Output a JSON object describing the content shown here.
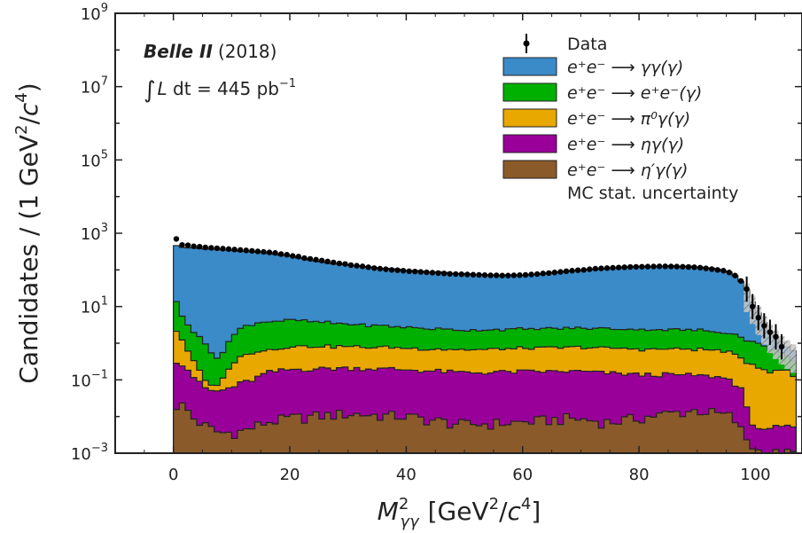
{
  "chart_data": {
    "type": "area",
    "stacked": true,
    "ylog": true,
    "xlabel": {
      "m": "M",
      "sup": "2",
      "sub": "γγ",
      "unit": "[GeV",
      "unit_sup": "2",
      "unit_mid": "/",
      "unit_c": "c",
      "unit_c_sup": "4",
      "unit_end": "]"
    },
    "ylabel": {
      "pre": "Candidates / (1 GeV",
      "sup1": "2",
      "mid": "/",
      "c": "c",
      "sup2": "4",
      "end": ")"
    },
    "xlim": [
      -10,
      108
    ],
    "ylim": [
      0.001,
      1000000000
    ],
    "x_ticks": [
      "0",
      "20",
      "40",
      "60",
      "80",
      "100"
    ],
    "x_tick_values": [
      0,
      20,
      40,
      60,
      80,
      100
    ],
    "y_ticks": [
      {
        "base": "10",
        "exp": "−3",
        "value": 0.001
      },
      {
        "base": "10",
        "exp": "−1",
        "value": 0.1
      },
      {
        "base": "10",
        "exp": "1",
        "value": 10
      },
      {
        "base": "10",
        "exp": "3",
        "value": 1000
      },
      {
        "base": "10",
        "exp": "5",
        "value": 100000
      },
      {
        "base": "10",
        "exp": "7",
        "value": 10000000
      },
      {
        "base": "10",
        "exp": "9",
        "value": 1000000000
      }
    ],
    "annotation": {
      "experiment": "Belle II",
      "year": "(2018)",
      "lumi_int": "∫",
      "lumi_L": "L",
      "lumi_dt": " dt = 445 pb",
      "lumi_exp": "−1"
    },
    "legend": {
      "position": "top-right"
    },
    "mc_stat_label": "MC stat. uncertainty",
    "data_label": "Data",
    "series": [
      {
        "name": "e⁺e⁻ ⟶ η′γ(γ)",
        "color": "#8b5a2b",
        "knots": [
          [
            0,
            0.02
          ],
          [
            2,
            0.02
          ],
          [
            3,
            0.01
          ],
          [
            5,
            0.006
          ],
          [
            8,
            0.0035
          ],
          [
            12,
            0.004
          ],
          [
            16,
            0.007
          ],
          [
            20,
            0.009
          ],
          [
            30,
            0.012
          ],
          [
            40,
            0.01
          ],
          [
            50,
            0.006
          ],
          [
            60,
            0.007
          ],
          [
            68,
            0.009
          ],
          [
            75,
            0.007
          ],
          [
            85,
            0.012
          ],
          [
            90,
            0.015
          ],
          [
            96,
            0.01
          ],
          [
            99,
            0.0018
          ],
          [
            101,
            0.001
          ]
        ]
      },
      {
        "name": "e⁺e⁻ ⟶ ηγ(γ)",
        "color": "#990099",
        "knots": [
          [
            0,
            0.35
          ],
          [
            2,
            0.22
          ],
          [
            4,
            0.09
          ],
          [
            6,
            0.045
          ],
          [
            8,
            0.045
          ],
          [
            10,
            0.06
          ],
          [
            12,
            0.08
          ],
          [
            14,
            0.1
          ],
          [
            16,
            0.15
          ],
          [
            20,
            0.18
          ],
          [
            30,
            0.2
          ],
          [
            40,
            0.18
          ],
          [
            50,
            0.15
          ],
          [
            60,
            0.16
          ],
          [
            70,
            0.16
          ],
          [
            80,
            0.13
          ],
          [
            90,
            0.12
          ],
          [
            95,
            0.1
          ],
          [
            98,
            0.05
          ],
          [
            99,
            0.004
          ],
          [
            107,
            0.004
          ]
        ]
      },
      {
        "name": "e⁺e⁻ ⟶ π⁰γ(γ)",
        "color": "#e8a800",
        "knots": [
          [
            0,
            2.5
          ],
          [
            1,
            1.5
          ],
          [
            3,
            0.3
          ],
          [
            5,
            0.06
          ],
          [
            6,
            0.018
          ],
          [
            8,
            0.025
          ],
          [
            9,
            0.12
          ],
          [
            11,
            0.3
          ],
          [
            14,
            0.5
          ],
          [
            18,
            0.5
          ],
          [
            20,
            0.65
          ],
          [
            30,
            0.6
          ],
          [
            40,
            0.55
          ],
          [
            50,
            0.5
          ],
          [
            60,
            0.55
          ],
          [
            70,
            0.6
          ],
          [
            80,
            0.55
          ],
          [
            90,
            0.55
          ],
          [
            95,
            0.5
          ],
          [
            98,
            0.3
          ],
          [
            100,
            0.25
          ],
          [
            103,
            0.15
          ],
          [
            105,
            0.2
          ],
          [
            107,
            0.1
          ]
        ]
      },
      {
        "name": "e⁺e⁻ ⟶ e⁺e⁻(γ)",
        "color": "#00b000",
        "knots": [
          [
            0,
            30
          ],
          [
            1,
            5
          ],
          [
            3,
            2
          ],
          [
            5,
            1.3
          ],
          [
            7,
            0.3
          ],
          [
            8,
            0.35
          ],
          [
            9,
            0.7
          ],
          [
            10,
            1.2
          ],
          [
            12,
            2.4
          ],
          [
            15,
            3.2
          ],
          [
            20,
            3.5
          ],
          [
            30,
            2.5
          ],
          [
            40,
            2
          ],
          [
            50,
            1.6
          ],
          [
            60,
            1.7
          ],
          [
            70,
            1.8
          ],
          [
            80,
            1.7
          ],
          [
            90,
            1.6
          ],
          [
            96,
            1.3
          ],
          [
            98,
            1
          ],
          [
            100,
            0.8
          ],
          [
            103,
            0.5
          ],
          [
            105,
            0.3
          ],
          [
            107,
            0.2
          ]
        ]
      },
      {
        "name": "e⁺e⁻ ⟶ γγ(γ)",
        "color": "#3a8bc8",
        "knots": [
          [
            0,
            500
          ],
          [
            1,
            420
          ],
          [
            5,
            380
          ],
          [
            10,
            330
          ],
          [
            15,
            300
          ],
          [
            20,
            230
          ],
          [
            25,
            160
          ],
          [
            30,
            130
          ],
          [
            35,
            110
          ],
          [
            40,
            95
          ],
          [
            45,
            85
          ],
          [
            50,
            75
          ],
          [
            55,
            70
          ],
          [
            60,
            70
          ],
          [
            65,
            80
          ],
          [
            70,
            95
          ],
          [
            75,
            110
          ],
          [
            80,
            120
          ],
          [
            85,
            125
          ],
          [
            90,
            120
          ],
          [
            94,
            100
          ],
          [
            96,
            80
          ],
          [
            98,
            40
          ],
          [
            100,
            8
          ],
          [
            102,
            2
          ],
          [
            104,
            0.6
          ],
          [
            106,
            0.3
          ],
          [
            107,
            0.3
          ]
        ]
      }
    ],
    "data_points": [
      [
        0.5,
        700
      ],
      [
        1.5,
        480
      ],
      [
        2.5,
        470
      ],
      [
        3.5,
        440
      ],
      [
        4.5,
        430
      ],
      [
        5.5,
        410
      ],
      [
        6.5,
        400
      ],
      [
        7.5,
        390
      ],
      [
        8.5,
        380
      ],
      [
        9.5,
        370
      ],
      [
        10.5,
        360
      ],
      [
        11.5,
        350
      ],
      [
        12.5,
        340
      ],
      [
        13.5,
        330
      ],
      [
        14.5,
        320
      ],
      [
        15.5,
        310
      ],
      [
        16.5,
        300
      ],
      [
        17.5,
        290
      ],
      [
        18.5,
        270
      ],
      [
        19.5,
        260
      ],
      [
        20.5,
        240
      ],
      [
        21.5,
        230
      ],
      [
        22.5,
        210
      ],
      [
        23.5,
        200
      ],
      [
        24.5,
        190
      ],
      [
        25.5,
        180
      ],
      [
        26.5,
        170
      ],
      [
        27.5,
        160
      ],
      [
        28.5,
        150
      ],
      [
        29.5,
        145
      ],
      [
        30.5,
        135
      ],
      [
        31.5,
        130
      ],
      [
        32.5,
        125
      ],
      [
        33.5,
        118
      ],
      [
        34.5,
        112
      ],
      [
        35.5,
        108
      ],
      [
        36.5,
        104
      ],
      [
        37.5,
        100
      ],
      [
        38.5,
        98
      ],
      [
        39.5,
        95
      ],
      [
        40.5,
        92
      ],
      [
        41.5,
        90
      ],
      [
        42.5,
        88
      ],
      [
        43.5,
        86
      ],
      [
        44.5,
        84
      ],
      [
        45.5,
        82
      ],
      [
        46.5,
        80
      ],
      [
        47.5,
        78
      ],
      [
        48.5,
        77
      ],
      [
        49.5,
        76
      ],
      [
        50.5,
        75
      ],
      [
        51.5,
        74
      ],
      [
        52.5,
        73
      ],
      [
        53.5,
        72
      ],
      [
        54.5,
        71
      ],
      [
        55.5,
        71
      ],
      [
        56.5,
        70
      ],
      [
        57.5,
        70
      ],
      [
        58.5,
        71
      ],
      [
        59.5,
        72
      ],
      [
        60.5,
        73
      ],
      [
        61.5,
        75
      ],
      [
        62.5,
        77
      ],
      [
        63.5,
        80
      ],
      [
        64.5,
        82
      ],
      [
        65.5,
        85
      ],
      [
        66.5,
        88
      ],
      [
        67.5,
        92
      ],
      [
        68.5,
        95
      ],
      [
        69.5,
        98
      ],
      [
        70.5,
        100
      ],
      [
        71.5,
        104
      ],
      [
        72.5,
        108
      ],
      [
        73.5,
        110
      ],
      [
        74.5,
        112
      ],
      [
        75.5,
        114
      ],
      [
        76.5,
        116
      ],
      [
        77.5,
        118
      ],
      [
        78.5,
        120
      ],
      [
        79.5,
        121
      ],
      [
        80.5,
        122
      ],
      [
        81.5,
        123
      ],
      [
        82.5,
        124
      ],
      [
        83.5,
        125
      ],
      [
        84.5,
        125
      ],
      [
        85.5,
        124
      ],
      [
        86.5,
        123
      ],
      [
        87.5,
        122
      ],
      [
        88.5,
        120
      ],
      [
        89.5,
        118
      ],
      [
        90.5,
        115
      ],
      [
        91.5,
        110
      ],
      [
        92.5,
        105
      ],
      [
        93.5,
        100
      ],
      [
        94.5,
        95
      ],
      [
        95.5,
        85
      ],
      [
        96.5,
        70
      ],
      [
        97.5,
        50
      ],
      [
        98.5,
        30
      ],
      [
        99.5,
        10
      ],
      [
        100.5,
        5
      ],
      [
        101.5,
        3
      ],
      [
        102.5,
        2
      ],
      [
        103.5,
        1.5
      ],
      [
        104.5,
        0.8
      ]
    ]
  }
}
